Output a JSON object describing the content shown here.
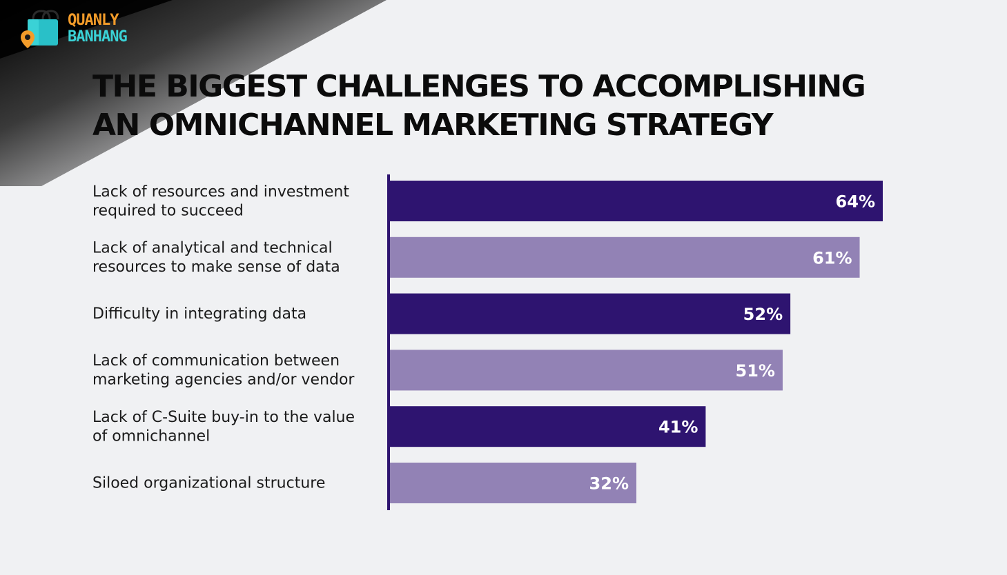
{
  "brand": {
    "logo_top": "QUANLY",
    "logo_bottom": "BANHANG",
    "icon": "shopping-bag-location-icon",
    "colors": {
      "orange": "#f39c2a",
      "teal": "#3ad2d6"
    }
  },
  "title": {
    "line1": "THE BIGGEST CHALLENGES TO ACCOMPLISHING",
    "line2": "AN OMNICHANNEL MARKETING STRATEGY"
  },
  "chart_data": {
    "type": "bar",
    "orientation": "horizontal",
    "title": "THE BIGGEST CHALLENGES TO ACCOMPLISHING AN OMNICHANNEL MARKETING STRATEGY",
    "categories": [
      [
        "Lack of resources and investment",
        "required to succeed"
      ],
      [
        "Lack of analytical and technical",
        "resources to make sense of data"
      ],
      [
        "Difficulty in integrating data"
      ],
      [
        "Lack of communication between",
        "marketing agencies and/or vendor"
      ],
      [
        "Lack of C-Suite buy-in to the value",
        "of omnichannel"
      ],
      [
        "Siloed organizational structure"
      ]
    ],
    "values": [
      64,
      61,
      52,
      51,
      41,
      32
    ],
    "value_labels": [
      "64%",
      "61%",
      "52%",
      "51%",
      "41%",
      "32%"
    ],
    "unit": "%",
    "xlim": [
      0,
      64
    ],
    "colors": [
      "#2e1470",
      "#9282b5",
      "#2e1470",
      "#9282b5",
      "#2e1470",
      "#9282b5"
    ],
    "axis_color": "#2e1470",
    "grid": false,
    "legend": "none"
  }
}
